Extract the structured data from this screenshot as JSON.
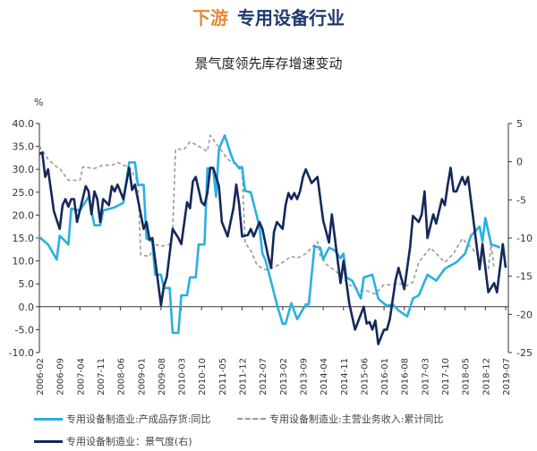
{
  "header": {
    "prefix": "下游",
    "title": "专用设备行业"
  },
  "chart_data": {
    "type": "line",
    "title": "景气度领先库存增速变动",
    "left_unit": "%",
    "left_ylim": [
      -10,
      40
    ],
    "left_ticks": [
      "40.0",
      "35.0",
      "30.0",
      "25.0",
      "20.0",
      "15.0",
      "10.0",
      "5.0",
      "0.0",
      "-5.0",
      "-10.0"
    ],
    "right_ylim": [
      -25,
      5
    ],
    "right_ticks": [
      "5",
      "0",
      "-5",
      "-10",
      "-15",
      "-20",
      "-25"
    ],
    "x_range": [
      "2006-02",
      "2019-07"
    ],
    "x_ticks": [
      "2006-02",
      "2006-09",
      "2007-04",
      "2007-11",
      "2008-06",
      "2009-01",
      "2009-08",
      "2010-03",
      "2010-10",
      "2011-05",
      "2011-12",
      "2012-07",
      "2013-02",
      "2013-09",
      "2014-04",
      "2014-11",
      "2015-06",
      "2016-01",
      "2016-08",
      "2017-03",
      "2017-10",
      "2018-05",
      "2018-12",
      "2019-07"
    ],
    "grid": false,
    "legend_placement": "bottom",
    "series": [
      {
        "name": "专用设备制造业:产成品存货:同比",
        "axis": "left",
        "style": "solid",
        "color": "#29b0e0",
        "points": [
          [
            "2006-02",
            15.2
          ],
          [
            "2006-05",
            13.6
          ],
          [
            "2006-08",
            10.3
          ],
          [
            "2006-09",
            15.5
          ],
          [
            "2006-10",
            14.9
          ],
          [
            "2006-12",
            13.6
          ],
          [
            "2007-01",
            21.4
          ],
          [
            "2007-04",
            21.0
          ],
          [
            "2007-07",
            24.0
          ],
          [
            "2007-09",
            17.8
          ],
          [
            "2007-11",
            17.8
          ],
          [
            "2007-12",
            21.0
          ],
          [
            "2008-04",
            21.7
          ],
          [
            "2008-07",
            22.7
          ],
          [
            "2008-09",
            31.5
          ],
          [
            "2008-11",
            31.5
          ],
          [
            "2008-12",
            26.6
          ],
          [
            "2009-02",
            26.6
          ],
          [
            "2009-03",
            14.9
          ],
          [
            "2009-05",
            14.2
          ],
          [
            "2009-06",
            7.0
          ],
          [
            "2009-08",
            7.0
          ],
          [
            "2009-09",
            4.1
          ],
          [
            "2009-11",
            4.1
          ],
          [
            "2009-12",
            -5.7
          ],
          [
            "2010-02",
            -5.7
          ],
          [
            "2010-03",
            2.5
          ],
          [
            "2010-05",
            2.5
          ],
          [
            "2010-06",
            6.4
          ],
          [
            "2010-08",
            6.4
          ],
          [
            "2010-09",
            13.6
          ],
          [
            "2010-11",
            13.6
          ],
          [
            "2010-12",
            30.2
          ],
          [
            "2011-02",
            30.2
          ],
          [
            "2011-03",
            24.0
          ],
          [
            "2011-04",
            34.4
          ],
          [
            "2011-06",
            37.4
          ],
          [
            "2011-08",
            33.5
          ],
          [
            "2011-09",
            31.8
          ],
          [
            "2011-11",
            30.2
          ],
          [
            "2011-12",
            30.5
          ],
          [
            "2012-01",
            25.3
          ],
          [
            "2012-03",
            25.0
          ],
          [
            "2012-06",
            17.5
          ],
          [
            "2012-07",
            11.6
          ],
          [
            "2012-08",
            10.3
          ],
          [
            "2012-09",
            8.0
          ],
          [
            "2012-12",
            0.5
          ],
          [
            "2013-02",
            -3.7
          ],
          [
            "2013-03",
            -3.7
          ],
          [
            "2013-05",
            0.8
          ],
          [
            "2013-07",
            -2.7
          ],
          [
            "2013-10",
            0.5
          ],
          [
            "2013-11",
            0.5
          ],
          [
            "2014-01",
            13.2
          ],
          [
            "2014-03",
            12.9
          ],
          [
            "2014-04",
            10.3
          ],
          [
            "2014-06",
            12.9
          ],
          [
            "2014-08",
            12.3
          ],
          [
            "2014-10",
            10.6
          ],
          [
            "2014-11",
            11.6
          ],
          [
            "2014-12",
            6.4
          ],
          [
            "2015-02",
            5.7
          ],
          [
            "2015-05",
            1.8
          ],
          [
            "2015-06",
            6.4
          ],
          [
            "2015-09",
            7.0
          ],
          [
            "2015-11",
            1.8
          ],
          [
            "2015-12",
            1.2
          ],
          [
            "2016-02",
            0.2
          ],
          [
            "2016-04",
            0.5
          ],
          [
            "2016-06",
            -0.8
          ],
          [
            "2016-09",
            -2.1
          ],
          [
            "2016-11",
            1.8
          ],
          [
            "2017-01",
            2.5
          ],
          [
            "2017-04",
            7.0
          ],
          [
            "2017-07",
            5.7
          ],
          [
            "2017-10",
            8.3
          ],
          [
            "2018-02",
            9.7
          ],
          [
            "2018-05",
            11.6
          ],
          [
            "2018-07",
            15.5
          ],
          [
            "2018-10",
            17.5
          ],
          [
            "2018-11",
            14.2
          ],
          [
            "2018-12",
            19.4
          ],
          [
            "2019-02",
            13.6
          ],
          [
            "2019-04",
            13.2
          ],
          [
            "2019-05",
            12.9
          ]
        ]
      },
      {
        "name": "专用设备制造业:主营业务收入:累计同比",
        "axis": "left",
        "style": "dashed",
        "color": "#9a9a9a",
        "points": [
          [
            "2006-02",
            35.1
          ],
          [
            "2006-05",
            32.2
          ],
          [
            "2006-08",
            30.5
          ],
          [
            "2006-09",
            30.2
          ],
          [
            "2006-12",
            27.6
          ],
          [
            "2007-04",
            27.6
          ],
          [
            "2007-05",
            30.5
          ],
          [
            "2007-09",
            30.2
          ],
          [
            "2007-12",
            30.9
          ],
          [
            "2008-03",
            30.9
          ],
          [
            "2008-05",
            31.5
          ],
          [
            "2008-07",
            30.9
          ],
          [
            "2008-09",
            30.5
          ],
          [
            "2008-12",
            27.3
          ],
          [
            "2009-01",
            11.3
          ],
          [
            "2009-04",
            11.0
          ],
          [
            "2009-06",
            13.6
          ],
          [
            "2009-08",
            13.2
          ],
          [
            "2009-11",
            13.6
          ],
          [
            "2009-12",
            16.2
          ],
          [
            "2010-01",
            34.4
          ],
          [
            "2010-04",
            34.4
          ],
          [
            "2010-06",
            36.0
          ],
          [
            "2010-08",
            35.4
          ],
          [
            "2010-12",
            33.9
          ],
          [
            "2011-01",
            37.4
          ],
          [
            "2011-04",
            34.8
          ],
          [
            "2011-07",
            32.2
          ],
          [
            "2011-12",
            30.2
          ],
          [
            "2012-01",
            13.9
          ],
          [
            "2012-03",
            12.3
          ],
          [
            "2012-05",
            9.3
          ],
          [
            "2012-07",
            8.3
          ],
          [
            "2012-09",
            8.0
          ],
          [
            "2013-01",
            9.3
          ],
          [
            "2013-05",
            11.0
          ],
          [
            "2013-07",
            10.6
          ],
          [
            "2013-10",
            11.6
          ],
          [
            "2014-02",
            14.2
          ],
          [
            "2014-03",
            11.0
          ],
          [
            "2014-05",
            9.3
          ],
          [
            "2014-09",
            7.4
          ],
          [
            "2015-01",
            4.8
          ],
          [
            "2015-05",
            3.5
          ],
          [
            "2015-07",
            3.5
          ],
          [
            "2015-10",
            2.8
          ],
          [
            "2016-01",
            4.8
          ],
          [
            "2016-03",
            4.8
          ],
          [
            "2016-06",
            5.1
          ],
          [
            "2016-09",
            4.6
          ],
          [
            "2016-11",
            5.4
          ],
          [
            "2017-01",
            9.7
          ],
          [
            "2017-05",
            12.9
          ],
          [
            "2017-10",
            9.7
          ],
          [
            "2018-01",
            11.6
          ],
          [
            "2018-04",
            14.9
          ],
          [
            "2018-08",
            12.3
          ],
          [
            "2018-10",
            10.6
          ],
          [
            "2019-01",
            8.3
          ],
          [
            "2019-02",
            13.6
          ],
          [
            "2019-03",
            8.3
          ]
        ]
      },
      {
        "name": "专用设备制造业：景气度(右)",
        "axis": "right",
        "style": "solid",
        "color": "#14285a",
        "points": [
          [
            "2006-02",
            1.0
          ],
          [
            "2006-03",
            1.2
          ],
          [
            "2006-04",
            -2.0
          ],
          [
            "2006-05",
            -1.0
          ],
          [
            "2006-07",
            -6.5
          ],
          [
            "2006-09",
            -8.8
          ],
          [
            "2006-10",
            -5.7
          ],
          [
            "2006-11",
            -4.9
          ],
          [
            "2006-12",
            -5.9
          ],
          [
            "2007-01",
            -4.9
          ],
          [
            "2007-02",
            -4.9
          ],
          [
            "2007-03",
            -7.9
          ],
          [
            "2007-06",
            -3.2
          ],
          [
            "2007-07",
            -3.9
          ],
          [
            "2007-08",
            -6.9
          ],
          [
            "2007-09",
            -3.9
          ],
          [
            "2007-10",
            -4.9
          ],
          [
            "2007-11",
            -7.9
          ],
          [
            "2007-12",
            -4.9
          ],
          [
            "2008-02",
            -5.7
          ],
          [
            "2008-03",
            -3.2
          ],
          [
            "2008-04",
            -3.9
          ],
          [
            "2008-05",
            -3.0
          ],
          [
            "2008-07",
            -4.9
          ],
          [
            "2008-09",
            -0.8
          ],
          [
            "2008-10",
            -3.7
          ],
          [
            "2008-11",
            -3.0
          ],
          [
            "2009-02",
            -8.8
          ],
          [
            "2009-03",
            -7.9
          ],
          [
            "2009-04",
            -10.2
          ],
          [
            "2009-05",
            -10.0
          ],
          [
            "2009-08",
            -18.8
          ],
          [
            "2009-09",
            -16.3
          ],
          [
            "2009-10",
            -15.1
          ],
          [
            "2009-12",
            -8.8
          ],
          [
            "2010-02",
            -10.0
          ],
          [
            "2010-03",
            -10.8
          ],
          [
            "2010-05",
            -5.3
          ],
          [
            "2010-06",
            -6.1
          ],
          [
            "2010-07",
            -2.6
          ],
          [
            "2010-08",
            -2.0
          ],
          [
            "2010-10",
            -5.3
          ],
          [
            "2010-11",
            -5.7
          ],
          [
            "2010-12",
            -4.1
          ],
          [
            "2011-01",
            -0.8
          ],
          [
            "2011-02",
            -0.8
          ],
          [
            "2011-04",
            -3.2
          ],
          [
            "2011-05",
            -7.9
          ],
          [
            "2011-07",
            -9.8
          ],
          [
            "2011-08",
            -7.9
          ],
          [
            "2011-09",
            -6.1
          ],
          [
            "2011-10",
            -3.0
          ],
          [
            "2011-11",
            -5.7
          ],
          [
            "2011-12",
            -9.8
          ],
          [
            "2012-02",
            -9.6
          ],
          [
            "2012-03",
            -8.8
          ],
          [
            "2012-04",
            -9.8
          ],
          [
            "2012-06",
            -7.9
          ],
          [
            "2012-07",
            -8.8
          ],
          [
            "2012-09",
            -12.4
          ],
          [
            "2012-10",
            -13.9
          ],
          [
            "2012-11",
            -9.2
          ],
          [
            "2012-12",
            -7.9
          ],
          [
            "2013-02",
            -8.8
          ],
          [
            "2013-03",
            -5.7
          ],
          [
            "2013-04",
            -4.1
          ],
          [
            "2013-05",
            -4.9
          ],
          [
            "2013-06",
            -4.1
          ],
          [
            "2013-07",
            -4.9
          ],
          [
            "2013-08",
            -3.9
          ],
          [
            "2013-09",
            -2.0
          ],
          [
            "2013-10",
            -1.0
          ],
          [
            "2013-12",
            -2.8
          ],
          [
            "2014-02",
            -2.0
          ],
          [
            "2014-04",
            -7.7
          ],
          [
            "2014-06",
            -10.6
          ],
          [
            "2014-07",
            -6.9
          ],
          [
            "2014-10",
            -15.9
          ],
          [
            "2014-11",
            -13.0
          ],
          [
            "2015-01",
            -18.6
          ],
          [
            "2015-03",
            -22.0
          ],
          [
            "2015-05",
            -20.0
          ],
          [
            "2015-06",
            -19.0
          ],
          [
            "2015-07",
            -21.2
          ],
          [
            "2015-08",
            -21.0
          ],
          [
            "2015-09",
            -22.0
          ],
          [
            "2015-10",
            -20.8
          ],
          [
            "2015-11",
            -23.9
          ],
          [
            "2016-01",
            -22.0
          ],
          [
            "2016-02",
            -22.0
          ],
          [
            "2016-03",
            -20.6
          ],
          [
            "2016-05",
            -15.5
          ],
          [
            "2016-06",
            -13.9
          ],
          [
            "2016-08",
            -16.7
          ],
          [
            "2016-09",
            -13.9
          ],
          [
            "2016-10",
            -11.2
          ],
          [
            "2016-11",
            -7.1
          ],
          [
            "2017-01",
            -7.9
          ],
          [
            "2017-02",
            -6.9
          ],
          [
            "2017-03",
            -3.9
          ],
          [
            "2017-04",
            -10.0
          ],
          [
            "2017-06",
            -6.9
          ],
          [
            "2017-07",
            -8.1
          ],
          [
            "2017-09",
            -4.9
          ],
          [
            "2017-10",
            -5.7
          ],
          [
            "2017-11",
            -3.0
          ],
          [
            "2017-12",
            -0.8
          ],
          [
            "2018-01",
            -3.9
          ],
          [
            "2018-02",
            -3.9
          ],
          [
            "2018-04",
            -2.0
          ],
          [
            "2018-05",
            -3.0
          ],
          [
            "2018-06",
            -2.0
          ],
          [
            "2018-10",
            -14.1
          ],
          [
            "2018-11",
            -10.8
          ],
          [
            "2019-01",
            -17.1
          ],
          [
            "2019-03",
            -15.9
          ],
          [
            "2019-04",
            -17.1
          ],
          [
            "2019-06",
            -10.8
          ],
          [
            "2019-07",
            -13.9
          ]
        ]
      }
    ]
  }
}
